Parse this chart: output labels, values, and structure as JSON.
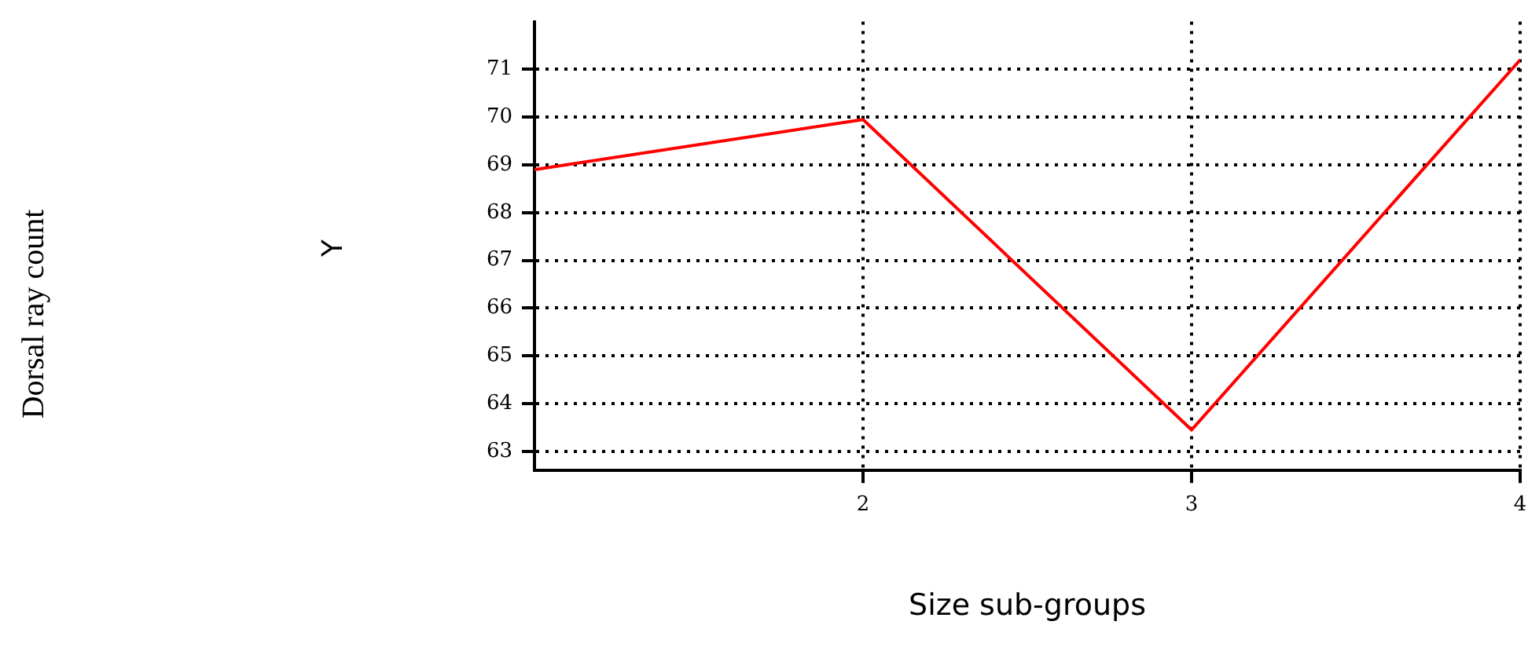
{
  "chart_data": {
    "type": "line",
    "xlabel": "Size sub-groups",
    "annotations": [
      "Dorsal ray count",
      "Y"
    ],
    "x": [
      1,
      2,
      3,
      4
    ],
    "series": [
      {
        "color": "#ff0000",
        "values": [
          68.9,
          69.95,
          63.45,
          71.2
        ]
      }
    ],
    "xlim": [
      1,
      4
    ],
    "ylim": [
      62.6,
      72
    ],
    "xticks": [
      2,
      3,
      4
    ],
    "yticks": [
      63,
      64,
      65,
      66,
      67,
      68,
      69,
      70,
      71
    ],
    "grid": true,
    "marker": "none",
    "line_style": "solid"
  }
}
